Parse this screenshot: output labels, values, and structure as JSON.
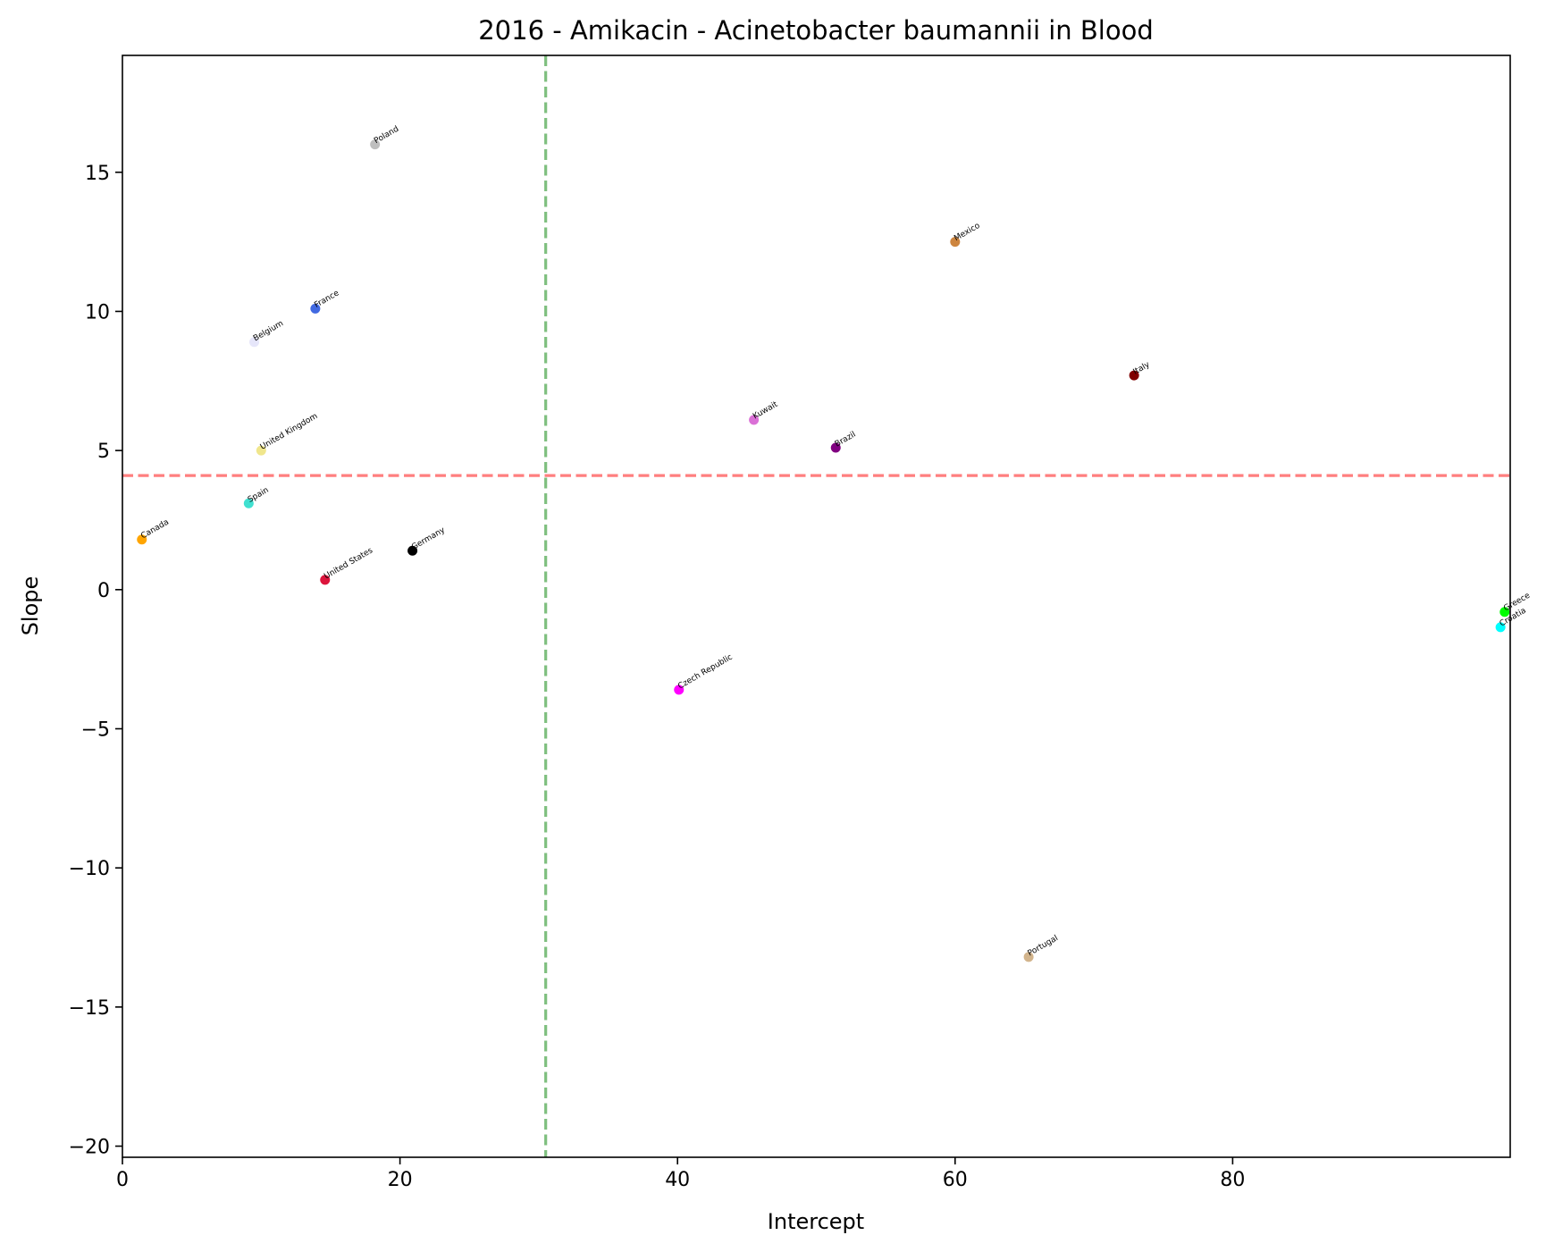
{
  "chart_data": {
    "type": "scatter",
    "title": "2016 - Amikacin - Acinetobacter baumannii in Blood",
    "xlabel": "Intercept",
    "ylabel": "Slope",
    "xlim": [
      0,
      100
    ],
    "ylim": [
      -20.4,
      19.2
    ],
    "x_ticks": [
      0,
      20,
      40,
      60,
      80
    ],
    "x_tick_labels": [
      "0",
      "20",
      "40",
      "60",
      "80"
    ],
    "y_ticks": [
      -20,
      -15,
      -10,
      -5,
      0,
      5,
      10,
      15
    ],
    "y_tick_labels": [
      "−20",
      "−15",
      "−10",
      "−5",
      "0",
      "5",
      "10",
      "15"
    ],
    "grid": false,
    "reference_lines": [
      {
        "orientation": "vertical",
        "value": 30.5,
        "color": "#7fbf7f",
        "style": "dashed"
      },
      {
        "orientation": "horizontal",
        "value": 4.1,
        "color": "#ff7f7f",
        "style": "dashed"
      }
    ],
    "points": [
      {
        "label": "Poland",
        "x": 18.2,
        "y": 16.0,
        "color": "#bebebe"
      },
      {
        "label": "Mexico",
        "x": 60.0,
        "y": 12.5,
        "color": "#cd853f"
      },
      {
        "label": "France",
        "x": 13.9,
        "y": 10.1,
        "color": "#4169e1"
      },
      {
        "label": "Belgium",
        "x": 9.5,
        "y": 8.9,
        "color": "#e6e6fa"
      },
      {
        "label": "Italy",
        "x": 72.9,
        "y": 7.7,
        "color": "#800000"
      },
      {
        "label": "Kuwait",
        "x": 45.5,
        "y": 6.1,
        "color": "#da70d6"
      },
      {
        "label": "Brazil",
        "x": 51.4,
        "y": 5.1,
        "color": "#800080"
      },
      {
        "label": "United Kingdom",
        "x": 10.0,
        "y": 5.0,
        "color": "#f0e68c"
      },
      {
        "label": "Spain",
        "x": 9.1,
        "y": 3.1,
        "color": "#40e0d0"
      },
      {
        "label": "Canada",
        "x": 1.4,
        "y": 1.8,
        "color": "#ffa500"
      },
      {
        "label": "Germany",
        "x": 20.9,
        "y": 1.4,
        "color": "#000000"
      },
      {
        "label": "United States",
        "x": 14.6,
        "y": 0.35,
        "color": "#dc143c"
      },
      {
        "label": "Greece",
        "x": 99.6,
        "y": -0.8,
        "color": "#00ff00"
      },
      {
        "label": "Croatia",
        "x": 99.3,
        "y": -1.35,
        "color": "#00ffff"
      },
      {
        "label": "Czech Republic",
        "x": 40.1,
        "y": -3.6,
        "color": "#ff00ff"
      },
      {
        "label": "Portugal",
        "x": 65.3,
        "y": -13.2,
        "color": "#d2b48c"
      }
    ]
  }
}
